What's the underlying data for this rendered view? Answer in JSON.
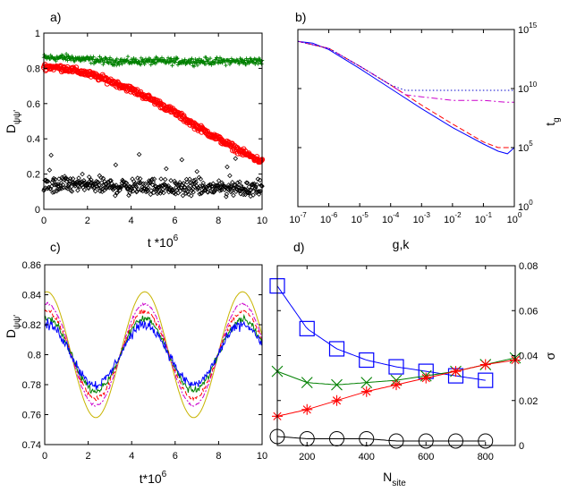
{
  "chart_data": [
    {
      "panel": "a)",
      "type": "scatter",
      "xlabel": "t *10",
      "xlabel_exp": "6",
      "ylabel": "D",
      "ylabel_sub": "ψψ'",
      "xlim": [
        0,
        10
      ],
      "ylim": [
        0,
        1
      ],
      "xticks": [
        "0",
        "2",
        "4",
        "6",
        "8",
        "10"
      ],
      "yticks": [
        "0",
        "0.2",
        "0.4",
        "0.6",
        "0.8",
        "1"
      ],
      "series": [
        {
          "marker": "plus",
          "color": "#008000",
          "x": [
            0,
            1,
            2,
            3,
            4,
            5,
            6,
            7,
            8,
            9,
            10
          ],
          "y": [
            0.86,
            0.86,
            0.85,
            0.84,
            0.84,
            0.84,
            0.84,
            0.84,
            0.84,
            0.84,
            0.84
          ],
          "spread": 0.03
        },
        {
          "marker": "circle",
          "color": "#ff0000",
          "x": [
            0,
            1,
            2,
            3,
            4,
            5,
            6,
            7,
            8,
            9,
            10
          ],
          "y": [
            0.81,
            0.8,
            0.77,
            0.73,
            0.68,
            0.62,
            0.55,
            0.47,
            0.4,
            0.33,
            0.27
          ],
          "spread": 0.025
        },
        {
          "marker": "diamond",
          "color": "#000000",
          "x": [
            0,
            1,
            2,
            3,
            4,
            5,
            6,
            7,
            8,
            9,
            10
          ],
          "y": [
            0.13,
            0.14,
            0.14,
            0.13,
            0.13,
            0.13,
            0.12,
            0.12,
            0.12,
            0.12,
            0.12
          ],
          "spread": 0.07
        }
      ]
    },
    {
      "panel": "b)",
      "type": "line",
      "xlabel": "g,k",
      "ylabel": "t",
      "ylabel_sub": "g",
      "xscale": "log",
      "yscale": "log",
      "xlim": [
        1e-07,
        1
      ],
      "ylim": [
        1,
        1000000000000000.0
      ],
      "xtick_exps": [
        "-7",
        "-6",
        "-5",
        "-4",
        "-3",
        "-2",
        "-1",
        "0"
      ],
      "ytick_exps": [
        "0",
        "5",
        "10",
        "15"
      ],
      "series": [
        {
          "style": "solid",
          "color": "#0000ff",
          "x": [
            1e-07,
            3e-07,
            1e-06,
            1e-05,
            0.0001,
            0.001,
            0.01,
            0.1,
            0.3,
            0.6,
            1
          ],
          "y": [
            100000000000000.0,
            70000000000000.0,
            20000000000000.0,
            500000000000.0,
            10000000000.0,
            200000000.0,
            5000000.0,
            200000.0,
            50000.0,
            30000.0,
            100000.0
          ]
        },
        {
          "style": "dashed",
          "color": "#ff0000",
          "x": [
            1e-07,
            1e-06,
            1e-05,
            0.0001,
            0.001,
            0.01,
            0.1,
            0.3,
            1
          ],
          "y": [
            100000000000000.0,
            25000000000000.0,
            800000000000.0,
            20000000000.0,
            400000000.0,
            10000000.0,
            300000.0,
            100000.0,
            100000.0
          ]
        },
        {
          "style": "dashdot",
          "color": "#cc00cc",
          "x": [
            1e-07,
            1e-06,
            1e-05,
            0.0001,
            0.0003,
            0.001,
            0.01,
            0.1,
            0.5,
            1
          ],
          "y": [
            100000000000000.0,
            25000000000000.0,
            800000000000.0,
            20000000000.0,
            3000000000.0,
            2000000000.0,
            1000000000.0,
            1000000000.0,
            700000000.0,
            700000000.0
          ]
        },
        {
          "style": "dotted",
          "color": "#0000cc",
          "x": [
            1e-07,
            1e-06,
            1e-05,
            0.0001,
            0.0003,
            0.001,
            0.01,
            0.1,
            1
          ],
          "y": [
            100000000000000.0,
            25000000000000.0,
            800000000000.0,
            20000000000.0,
            7000000000.0,
            7000000000.0,
            7000000000.0,
            7000000000.0,
            7000000000.0
          ]
        }
      ]
    },
    {
      "panel": "c)",
      "type": "line",
      "xlabel": "t*10",
      "xlabel_exp": "6",
      "ylabel": "D",
      "ylabel_sub": "ψψ'",
      "xlim": [
        0,
        10
      ],
      "ylim": [
        0.74,
        0.86
      ],
      "xticks": [
        "0",
        "2",
        "4",
        "6",
        "8",
        "10"
      ],
      "yticks": [
        "0.74",
        "0.76",
        "0.78",
        "0.8",
        "0.82",
        "0.84",
        "0.86"
      ],
      "series": [
        {
          "color": "#c8b400",
          "center": 0.8,
          "amplitude": 0.042,
          "period": 4.5
        },
        {
          "color": "#cc00cc",
          "center": 0.8,
          "amplitude": 0.034,
          "period": 4.5
        },
        {
          "color": "#ff0000",
          "center": 0.8,
          "amplitude": 0.029,
          "period": 4.5
        },
        {
          "color": "#008000",
          "center": 0.8,
          "amplitude": 0.024,
          "period": 4.5
        },
        {
          "color": "#0000ff",
          "center": 0.8,
          "amplitude": 0.02,
          "period": 4.5
        }
      ]
    },
    {
      "panel": "d)",
      "type": "line",
      "xlabel": "N",
      "xlabel_sub": "site",
      "ylabel": "σ",
      "xlim": [
        100,
        900
      ],
      "ylim": [
        0,
        0.08
      ],
      "xticks": [
        "200",
        "400",
        "600",
        "800"
      ],
      "yticks": [
        "0",
        "0.02",
        "0.04",
        "0.06",
        "0.08"
      ],
      "series": [
        {
          "marker": "square",
          "color": "#0000ff",
          "x": [
            100,
            200,
            300,
            400,
            500,
            600,
            700,
            800
          ],
          "y": [
            0.071,
            0.052,
            0.043,
            0.038,
            0.035,
            0.033,
            0.031,
            0.029
          ]
        },
        {
          "marker": "x",
          "color": "#008000",
          "x": [
            100,
            200,
            300,
            400,
            500,
            600,
            700,
            800,
            900
          ],
          "y": [
            0.033,
            0.028,
            0.027,
            0.028,
            0.029,
            0.031,
            0.033,
            0.036,
            0.039
          ]
        },
        {
          "marker": "asterisk",
          "color": "#ff0000",
          "x": [
            100,
            200,
            300,
            400,
            500,
            600,
            700,
            800,
            900
          ],
          "y": [
            0.013,
            0.016,
            0.02,
            0.024,
            0.027,
            0.03,
            0.033,
            0.036,
            0.038
          ]
        },
        {
          "marker": "circle",
          "color": "#000000",
          "x": [
            100,
            200,
            300,
            400,
            500,
            600,
            700,
            800
          ],
          "y": [
            0.004,
            0.003,
            0.003,
            0.003,
            0.002,
            0.002,
            0.002,
            0.002
          ]
        }
      ]
    }
  ]
}
